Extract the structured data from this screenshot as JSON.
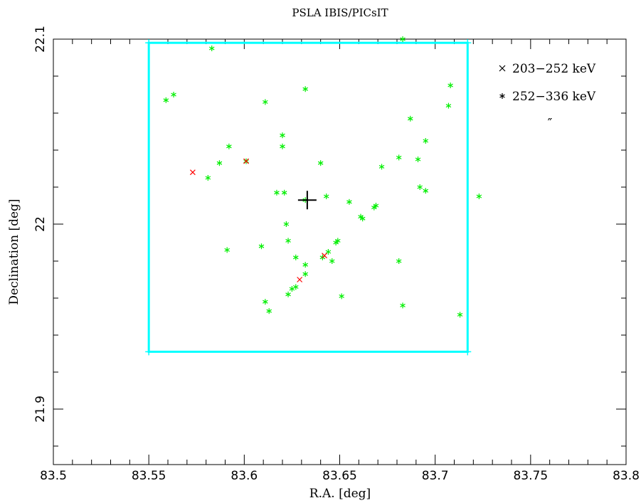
{
  "chart_data": {
    "type": "scatter",
    "title": "PSLA IBIS/PICsIT",
    "xlabel": "R.A. [deg]",
    "ylabel": "Declination [deg]",
    "xlim": [
      83.5,
      83.8
    ],
    "ylim": [
      21.87,
      22.1
    ],
    "x_ticks": [
      "83.5",
      "83.55",
      "83.6",
      "83.65",
      "83.7",
      "83.75",
      "83.8"
    ],
    "y_ticks": [
      "21.9",
      "22",
      "22.1"
    ],
    "grid": false,
    "legend_position": "top-right",
    "legend_note": "″",
    "box": {
      "x": [
        83.55,
        83.717
      ],
      "y": [
        21.931,
        22.098
      ],
      "color": "#00ffff"
    },
    "source_marker": {
      "x": 83.633,
      "y": 22.013,
      "color": "#000000"
    },
    "series": [
      {
        "name": "203−252 keV",
        "marker": "x",
        "color": "#ff0000",
        "x": [
          83.573,
          83.601,
          83.629,
          83.642
        ],
        "y": [
          22.028,
          22.034,
          21.97,
          21.983
        ]
      },
      {
        "name": "252−336 keV",
        "marker": "asterisk",
        "color": "#00ee00",
        "x": [
          83.559,
          83.563,
          83.583,
          83.611,
          83.632,
          83.683,
          83.707,
          83.708,
          83.687,
          83.695,
          83.592,
          83.62,
          83.62,
          83.587,
          83.581,
          83.601,
          83.64,
          83.617,
          83.621,
          83.632,
          83.643,
          83.655,
          83.661,
          83.662,
          83.668,
          83.669,
          83.672,
          83.681,
          83.691,
          83.692,
          83.695,
          83.723,
          83.622,
          83.623,
          83.609,
          83.591,
          83.627,
          83.632,
          83.632,
          83.649,
          83.648,
          83.646,
          83.644,
          83.641,
          83.627,
          83.625,
          83.623,
          83.611,
          83.613,
          83.651,
          83.681,
          83.683,
          83.713
        ],
        "y": [
          22.067,
          22.07,
          22.095,
          22.066,
          22.073,
          22.1,
          22.064,
          22.075,
          22.057,
          22.045,
          22.042,
          22.048,
          22.042,
          22.033,
          22.025,
          22.034,
          22.033,
          22.017,
          22.017,
          22.013,
          22.015,
          22.012,
          22.004,
          22.003,
          22.009,
          22.01,
          22.031,
          22.036,
          22.035,
          22.02,
          22.018,
          22.015,
          22.0,
          21.991,
          21.988,
          21.986,
          21.982,
          21.978,
          21.973,
          21.991,
          21.99,
          21.98,
          21.985,
          21.982,
          21.966,
          21.965,
          21.962,
          21.958,
          21.953,
          21.961,
          21.98,
          21.956,
          21.951
        ]
      }
    ]
  }
}
